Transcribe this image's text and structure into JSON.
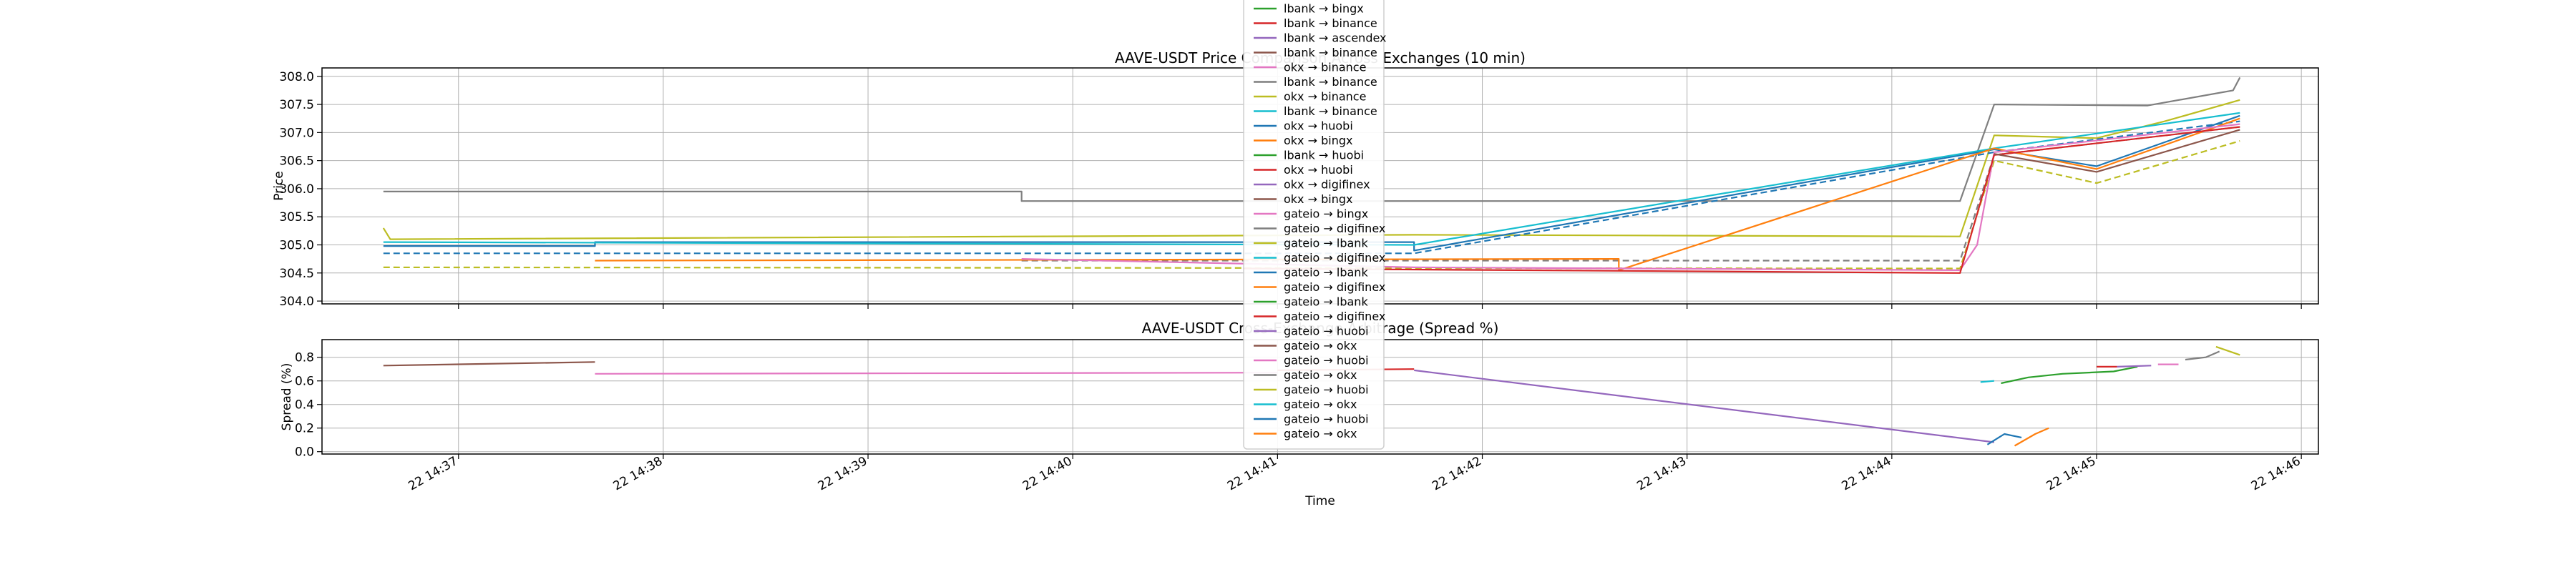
{
  "chart_data": [
    {
      "type": "line",
      "title": "AAVE-USDT Price Comparison Across Exchanges (10 min)",
      "ylabel": "Price",
      "ylim": [
        303.95,
        308.15
      ],
      "yticks": [
        "304.0",
        "304.5",
        "305.0",
        "305.5",
        "306.0",
        "306.5",
        "307.0",
        "307.5",
        "308.0"
      ],
      "grid": true,
      "series": [
        {
          "color": "#7f7f7f",
          "dash": false,
          "points": [
            [
              "14:36:38",
              305.95
            ],
            [
              "14:39:45",
              305.95
            ],
            [
              "14:39:45",
              305.78
            ],
            [
              "14:44:20",
              305.78
            ],
            [
              "14:44:30",
              307.5
            ],
            [
              "14:45:15",
              307.48
            ],
            [
              "14:45:40",
              307.75
            ],
            [
              "14:45:42",
              307.98
            ]
          ]
        },
        {
          "color": "#bcbd22",
          "dash": false,
          "points": [
            [
              "14:36:38",
              305.3
            ],
            [
              "14:36:40",
              305.1
            ],
            [
              "14:41:40",
              305.18
            ],
            [
              "14:44:20",
              305.15
            ],
            [
              "14:44:30",
              306.95
            ],
            [
              "14:45:00",
              306.9
            ],
            [
              "14:45:20",
              307.2
            ],
            [
              "14:45:42",
              307.58
            ]
          ]
        },
        {
          "color": "#bcbd22",
          "dash": true,
          "points": [
            [
              "14:36:38",
              304.6
            ],
            [
              "14:44:20",
              304.58
            ],
            [
              "14:44:30",
              306.5
            ],
            [
              "14:45:00",
              306.1
            ],
            [
              "14:45:42",
              306.85
            ]
          ]
        },
        {
          "color": "#1f77b4",
          "dash": false,
          "points": [
            [
              "14:36:38",
              304.98
            ],
            [
              "14:37:40",
              304.98
            ],
            [
              "14:37:40",
              305.05
            ],
            [
              "14:41:40",
              305.05
            ],
            [
              "14:41:40",
              304.9
            ],
            [
              "14:44:30",
              306.7
            ],
            [
              "14:45:00",
              306.4
            ],
            [
              "14:45:42",
              307.3
            ]
          ]
        },
        {
          "color": "#17becf",
          "dash": false,
          "points": [
            [
              "14:36:38",
              305.05
            ],
            [
              "14:41:40",
              305.0
            ],
            [
              "14:44:30",
              306.72
            ],
            [
              "14:45:42",
              307.35
            ]
          ]
        },
        {
          "color": "#1f77b4",
          "dash": true,
          "points": [
            [
              "14:36:38",
              304.85
            ],
            [
              "14:41:40",
              304.85
            ],
            [
              "14:44:30",
              306.65
            ],
            [
              "14:45:42",
              307.2
            ]
          ]
        },
        {
          "color": "#7f7f7f",
          "dash": true,
          "points": [
            [
              "14:39:45",
              304.72
            ],
            [
              "14:44:20",
              304.72
            ],
            [
              "14:44:30",
              306.6
            ],
            [
              "14:45:42",
              307.1
            ]
          ]
        },
        {
          "color": "#ff7f0e",
          "dash": false,
          "points": [
            [
              "14:37:40",
              304.72
            ],
            [
              "14:42:40",
              304.75
            ],
            [
              "14:42:40",
              304.55
            ],
            [
              "14:44:30",
              306.72
            ],
            [
              "14:45:00",
              306.35
            ],
            [
              "14:45:42",
              307.25
            ]
          ]
        },
        {
          "color": "#e377c2",
          "dash": false,
          "points": [
            [
              "14:39:45",
              304.75
            ],
            [
              "14:41:40",
              304.6
            ],
            [
              "14:44:20",
              304.55
            ],
            [
              "14:44:25",
              305.0
            ],
            [
              "14:44:30",
              306.65
            ],
            [
              "14:45:42",
              307.15
            ]
          ]
        },
        {
          "color": "#d62728",
          "dash": false,
          "points": [
            [
              "14:40:50",
              304.58
            ],
            [
              "14:44:20",
              304.5
            ],
            [
              "14:44:30",
              306.6
            ],
            [
              "14:45:42",
              307.1
            ]
          ]
        },
        {
          "color": "#8c564b",
          "dash": false,
          "points": [
            [
              "14:44:30",
              306.62
            ],
            [
              "14:45:00",
              306.3
            ],
            [
              "14:45:42",
              307.05
            ]
          ]
        }
      ]
    },
    {
      "type": "line",
      "title": "AAVE-USDT Cross-Exchange Arbitrage (Spread %)",
      "xlabel": "Time",
      "ylabel": "Spread (%)",
      "ylim": [
        -0.02,
        0.95
      ],
      "yticks": [
        "0.0",
        "0.2",
        "0.4",
        "0.6",
        "0.8"
      ],
      "xticks": [
        "22 14:37",
        "22 14:38",
        "22 14:39",
        "22 14:40",
        "22 14:41",
        "22 14:42",
        "22 14:43",
        "22 14:44",
        "22 14:45",
        "22 14:46"
      ],
      "grid": true,
      "series": [
        {
          "color": "#8c564b",
          "points": [
            [
              "14:36:38",
              0.73
            ],
            [
              "14:37:40",
              0.76
            ]
          ]
        },
        {
          "color": "#e377c2",
          "points": [
            [
              "14:37:40",
              0.66
            ],
            [
              "14:41:00",
              0.67
            ]
          ]
        },
        {
          "color": "#d62728",
          "points": [
            [
              "14:41:00",
              0.69
            ],
            [
              "14:41:40",
              0.7
            ]
          ]
        },
        {
          "color": "#9467bd",
          "points": [
            [
              "14:41:40",
              0.69
            ],
            [
              "14:44:30",
              0.08
            ]
          ]
        },
        {
          "color": "#1f77b4",
          "points": [
            [
              "14:44:28",
              0.06
            ],
            [
              "14:44:33",
              0.15
            ],
            [
              "14:44:38",
              0.12
            ]
          ]
        },
        {
          "color": "#ff7f0e",
          "points": [
            [
              "14:44:36",
              0.05
            ],
            [
              "14:44:42",
              0.15
            ],
            [
              "14:44:46",
              0.2
            ]
          ]
        },
        {
          "color": "#2ca02c",
          "points": [
            [
              "14:44:32",
              0.58
            ],
            [
              "14:44:40",
              0.63
            ],
            [
              "14:44:50",
              0.66
            ],
            [
              "14:45:05",
              0.68
            ],
            [
              "14:45:12",
              0.72
            ]
          ]
        },
        {
          "color": "#d62728",
          "points": [
            [
              "14:45:00",
              0.72
            ],
            [
              "14:45:06",
              0.72
            ]
          ]
        },
        {
          "color": "#9467bd",
          "points": [
            [
              "14:45:06",
              0.72
            ],
            [
              "14:45:16",
              0.73
            ]
          ]
        },
        {
          "color": "#e377c2",
          "points": [
            [
              "14:45:18",
              0.74
            ],
            [
              "14:45:24",
              0.74
            ]
          ]
        },
        {
          "color": "#7f7f7f",
          "points": [
            [
              "14:45:26",
              0.78
            ],
            [
              "14:45:32",
              0.8
            ],
            [
              "14:45:36",
              0.85
            ]
          ]
        },
        {
          "color": "#bcbd22",
          "points": [
            [
              "14:45:35",
              0.89
            ],
            [
              "14:45:42",
              0.82
            ]
          ]
        },
        {
          "color": "#17becf",
          "points": [
            [
              "14:44:26",
              0.59
            ],
            [
              "14:44:30",
              0.6
            ]
          ]
        }
      ]
    }
  ],
  "legend": {
    "placement": "upper center",
    "entries": [
      {
        "label": "lbank → bingx",
        "color": "#2ca02c"
      },
      {
        "label": "lbank → binance",
        "color": "#d62728"
      },
      {
        "label": "lbank → ascendex",
        "color": "#9467bd"
      },
      {
        "label": "lbank → binance",
        "color": "#8c564b"
      },
      {
        "label": "okx → binance",
        "color": "#e377c2"
      },
      {
        "label": "lbank → binance",
        "color": "#7f7f7f"
      },
      {
        "label": "okx → binance",
        "color": "#bcbd22"
      },
      {
        "label": "lbank → binance",
        "color": "#17becf"
      },
      {
        "label": "okx → huobi",
        "color": "#1f77b4"
      },
      {
        "label": "okx → bingx",
        "color": "#ff7f0e"
      },
      {
        "label": "lbank → huobi",
        "color": "#2ca02c"
      },
      {
        "label": "okx → huobi",
        "color": "#d62728"
      },
      {
        "label": "okx → digifinex",
        "color": "#9467bd"
      },
      {
        "label": "okx → bingx",
        "color": "#8c564b"
      },
      {
        "label": "gateio → bingx",
        "color": "#e377c2"
      },
      {
        "label": "gateio → digifinex",
        "color": "#7f7f7f"
      },
      {
        "label": "gateio → lbank",
        "color": "#bcbd22"
      },
      {
        "label": "gateio → digifinex",
        "color": "#17becf"
      },
      {
        "label": "gateio → lbank",
        "color": "#1f77b4"
      },
      {
        "label": "gateio → digifinex",
        "color": "#ff7f0e"
      },
      {
        "label": "gateio → lbank",
        "color": "#2ca02c"
      },
      {
        "label": "gateio → digifinex",
        "color": "#d62728"
      },
      {
        "label": "gateio → huobi",
        "color": "#9467bd"
      },
      {
        "label": "gateio → okx",
        "color": "#8c564b"
      },
      {
        "label": "gateio → huobi",
        "color": "#e377c2"
      },
      {
        "label": "gateio → okx",
        "color": "#7f7f7f"
      },
      {
        "label": "gateio → huobi",
        "color": "#bcbd22"
      },
      {
        "label": "gateio → okx",
        "color": "#17becf"
      },
      {
        "label": "gateio → huobi",
        "color": "#1f77b4"
      },
      {
        "label": "gateio → okx",
        "color": "#ff7f0e"
      }
    ]
  }
}
